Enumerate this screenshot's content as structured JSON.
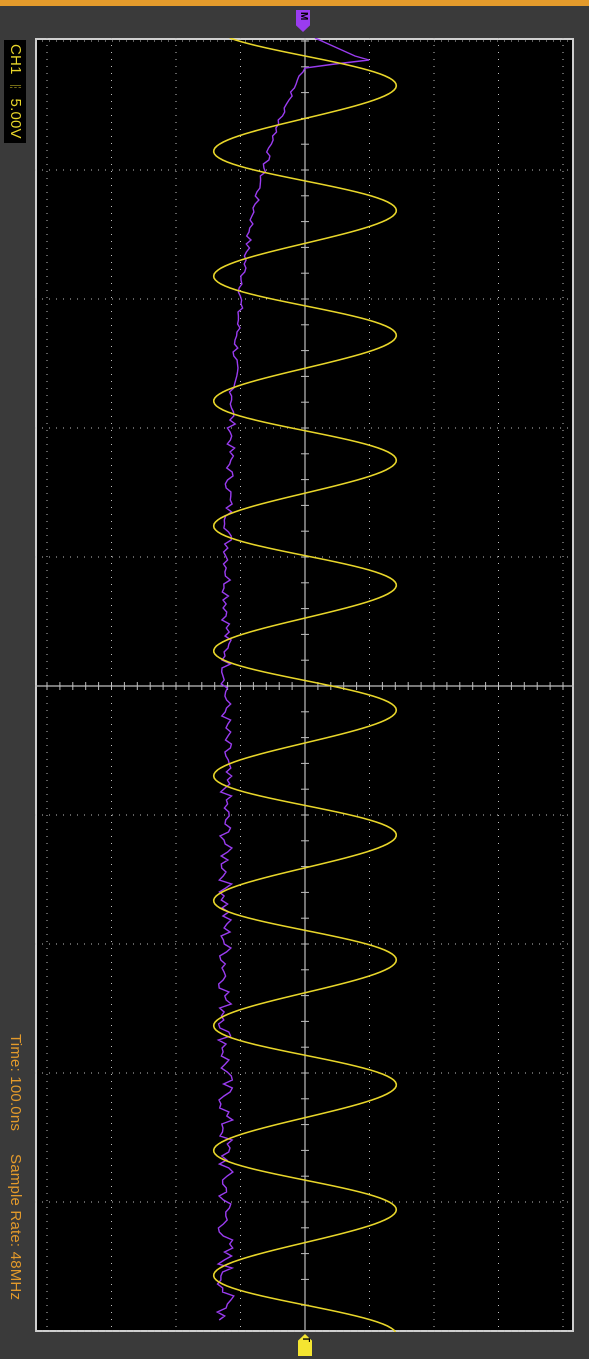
{
  "channel": {
    "label": "CH1 ⎓ 5.00V",
    "color": "#e8d62a"
  },
  "timebase": {
    "label": "Time: 100.0ns"
  },
  "sample_rate": {
    "label": "Sample Rate: 48MHz"
  },
  "markers": {
    "math": "M",
    "trigger": "T"
  },
  "colors": {
    "background": "#3a3a3a",
    "screen": "#000000",
    "grid": "#bfbfbf",
    "ch1_trace": "#e8d62a",
    "math_trace": "#9a3cf0",
    "accent": "#e39a2b"
  },
  "chart_data": {
    "type": "line",
    "orientation": "rotated-90-clockwise",
    "grid": true,
    "series": [
      {
        "type": "sine",
        "cycles": 10.2,
        "amplitude_div": 1.5
      },
      {
        "type": "decay-noise",
        "start_div": 0.0,
        "end_div": -0.95
      }
    ]
  }
}
